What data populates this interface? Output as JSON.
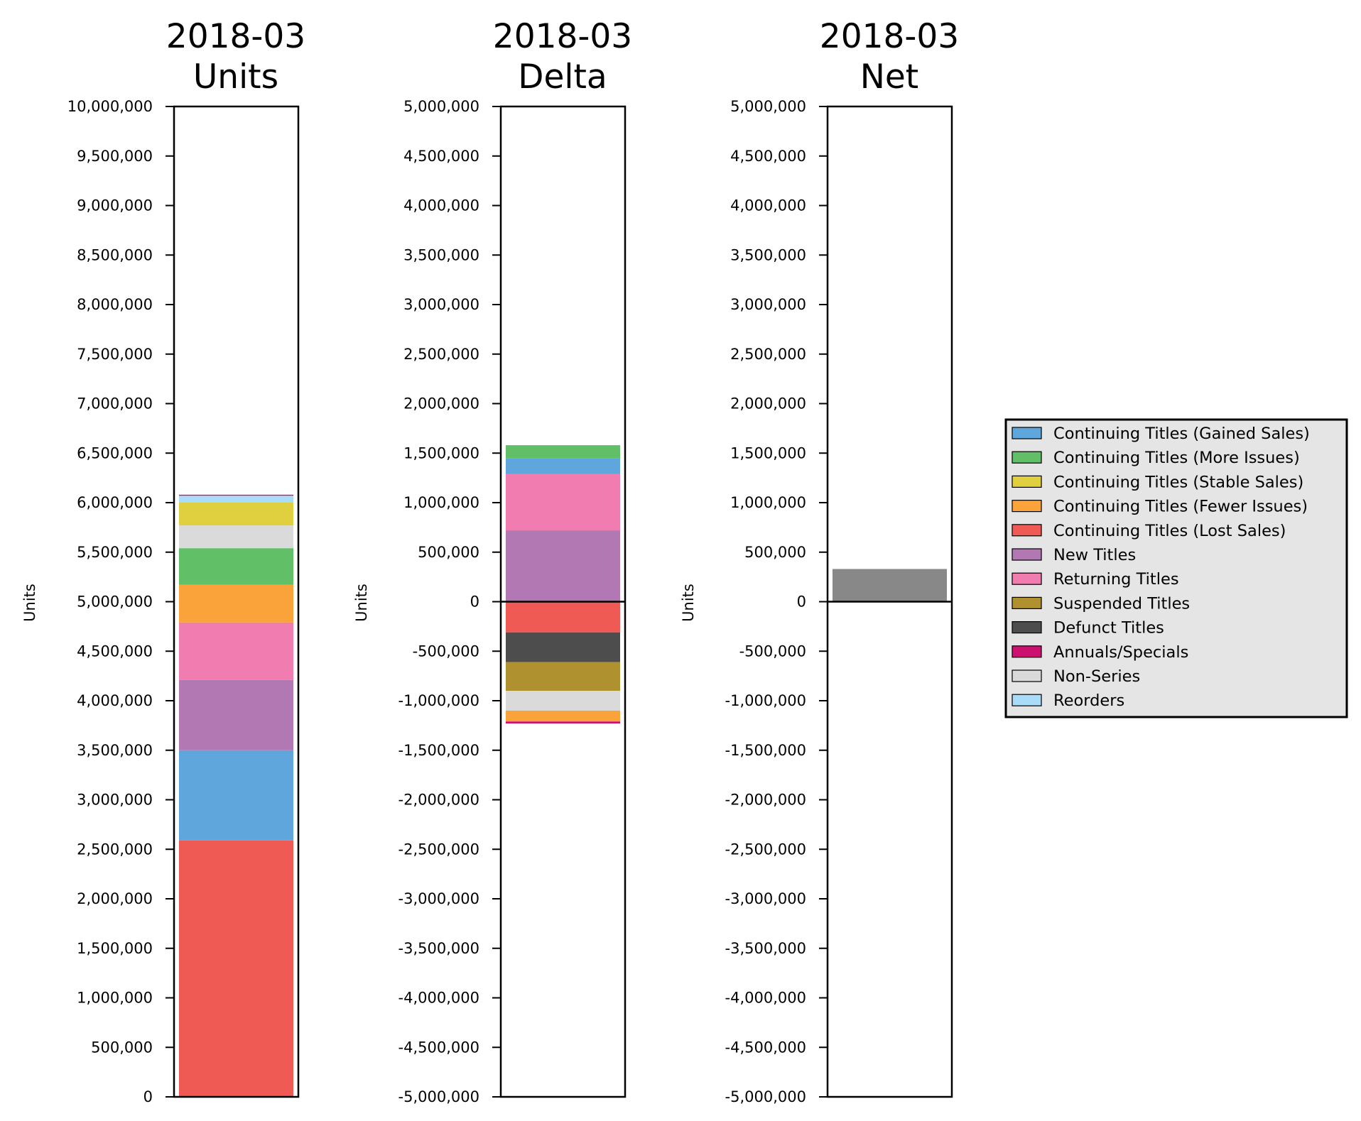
{
  "series_colors": {
    "Continuing Titles (Gained Sales)": "#5fa6dc",
    "Continuing Titles (More Issues)": "#60bf67",
    "Continuing Titles (Stable Sales)": "#e0d040",
    "Continuing Titles (Fewer Issues)": "#f9a33a",
    "Continuing Titles (Lost Sales)": "#f05a55",
    "New Titles": "#b278b3",
    "Returning Titles": "#f07cb0",
    "Suspended Titles": "#b09130",
    "Defunct Titles": "#4d4d4d",
    "Annuals/Specials": "#cc1070",
    "Non-Series": "#dadada",
    "Reorders": "#a8dcf8",
    "Net": "#888888"
  },
  "chart_data": [
    {
      "type": "bar",
      "stacked": true,
      "title": [
        "2018-03",
        "Units"
      ],
      "ylabel": "Units",
      "ylim": [
        0,
        10000000
      ],
      "yticks": [
        0,
        500000,
        1000000,
        1500000,
        2000000,
        2500000,
        3000000,
        3500000,
        4000000,
        4500000,
        5000000,
        5500000,
        6000000,
        6500000,
        7000000,
        7500000,
        8000000,
        8500000,
        9000000,
        9500000,
        10000000
      ],
      "ytick_labels": [
        "0",
        "500,000",
        "1,000,000",
        "1,500,000",
        "2,000,000",
        "2,500,000",
        "3,000,000",
        "3,500,000",
        "4,000,000",
        "4,500,000",
        "5,000,000",
        "5,500,000",
        "6,000,000",
        "6,500,000",
        "7,000,000",
        "7,500,000",
        "8,000,000",
        "8,500,000",
        "9,000,000",
        "9,500,000",
        "10,000,000"
      ],
      "series": [
        {
          "name": "Continuing Titles (Lost Sales)",
          "value": 2590000
        },
        {
          "name": "Continuing Titles (Gained Sales)",
          "value": 910000
        },
        {
          "name": "New Titles",
          "value": 710000
        },
        {
          "name": "Returning Titles",
          "value": 580000
        },
        {
          "name": "Continuing Titles (Fewer Issues)",
          "value": 380000
        },
        {
          "name": "Continuing Titles (More Issues)",
          "value": 370000
        },
        {
          "name": "Non-Series",
          "value": 230000
        },
        {
          "name": "Continuing Titles (Stable Sales)",
          "value": 230000
        },
        {
          "name": "Reorders",
          "value": 70000
        },
        {
          "name": "Annuals/Specials",
          "value": 10000
        }
      ]
    },
    {
      "type": "bar",
      "stacked": true,
      "title": [
        "2018-03",
        "Delta"
      ],
      "ylabel": "Units",
      "ylim": [
        -5000000,
        5000000
      ],
      "yticks": [
        -5000000,
        -4500000,
        -4000000,
        -3500000,
        -3000000,
        -2500000,
        -2000000,
        -1500000,
        -1000000,
        -500000,
        0,
        500000,
        1000000,
        1500000,
        2000000,
        2500000,
        3000000,
        3500000,
        4000000,
        4500000,
        5000000
      ],
      "ytick_labels": [
        "-5,000,000",
        "-4,500,000",
        "-4,000,000",
        "-3,500,000",
        "-3,000,000",
        "-2,500,000",
        "-2,000,000",
        "-1,500,000",
        "-1,000,000",
        "-500,000",
        "0",
        "500,000",
        "1,000,000",
        "1,500,000",
        "2,000,000",
        "2,500,000",
        "3,000,000",
        "3,500,000",
        "4,000,000",
        "4,500,000",
        "5,000,000"
      ],
      "zero_line": true,
      "positive": [
        {
          "name": "New Titles",
          "value": 720000
        },
        {
          "name": "Returning Titles",
          "value": 570000
        },
        {
          "name": "Continuing Titles (Gained Sales)",
          "value": 160000
        },
        {
          "name": "Continuing Titles (More Issues)",
          "value": 130000
        }
      ],
      "negative": [
        {
          "name": "Continuing Titles (Lost Sales)",
          "value": -310000
        },
        {
          "name": "Defunct Titles",
          "value": -300000
        },
        {
          "name": "Suspended Titles",
          "value": -290000
        },
        {
          "name": "Non-Series",
          "value": -200000
        },
        {
          "name": "Continuing Titles (Fewer Issues)",
          "value": -110000
        },
        {
          "name": "Annuals/Specials",
          "value": -20000
        }
      ]
    },
    {
      "type": "bar",
      "title": [
        "2018-03",
        "Net"
      ],
      "ylabel": "Units",
      "ylim": [
        -5000000,
        5000000
      ],
      "yticks": [
        -5000000,
        -4500000,
        -4000000,
        -3500000,
        -3000000,
        -2500000,
        -2000000,
        -1500000,
        -1000000,
        -500000,
        0,
        500000,
        1000000,
        1500000,
        2000000,
        2500000,
        3000000,
        3500000,
        4000000,
        4500000,
        5000000
      ],
      "ytick_labels": [
        "-5,000,000",
        "-4,500,000",
        "-4,000,000",
        "-3,500,000",
        "-3,000,000",
        "-2,500,000",
        "-2,000,000",
        "-1,500,000",
        "-1,000,000",
        "-500,000",
        "0",
        "500,000",
        "1,000,000",
        "1,500,000",
        "2,000,000",
        "2,500,000",
        "3,000,000",
        "3,500,000",
        "4,000,000",
        "4,500,000",
        "5,000,000"
      ],
      "zero_line": true,
      "series": [
        {
          "name": "Net",
          "value": 330000
        }
      ]
    }
  ],
  "legend": {
    "placement": "right",
    "entries": [
      "Continuing Titles (Gained Sales)",
      "Continuing Titles (More Issues)",
      "Continuing Titles (Stable Sales)",
      "Continuing Titles (Fewer Issues)",
      "Continuing Titles (Lost Sales)",
      "New Titles",
      "Returning Titles",
      "Suspended Titles",
      "Defunct Titles",
      "Annuals/Specials",
      "Non-Series",
      "Reorders"
    ]
  }
}
